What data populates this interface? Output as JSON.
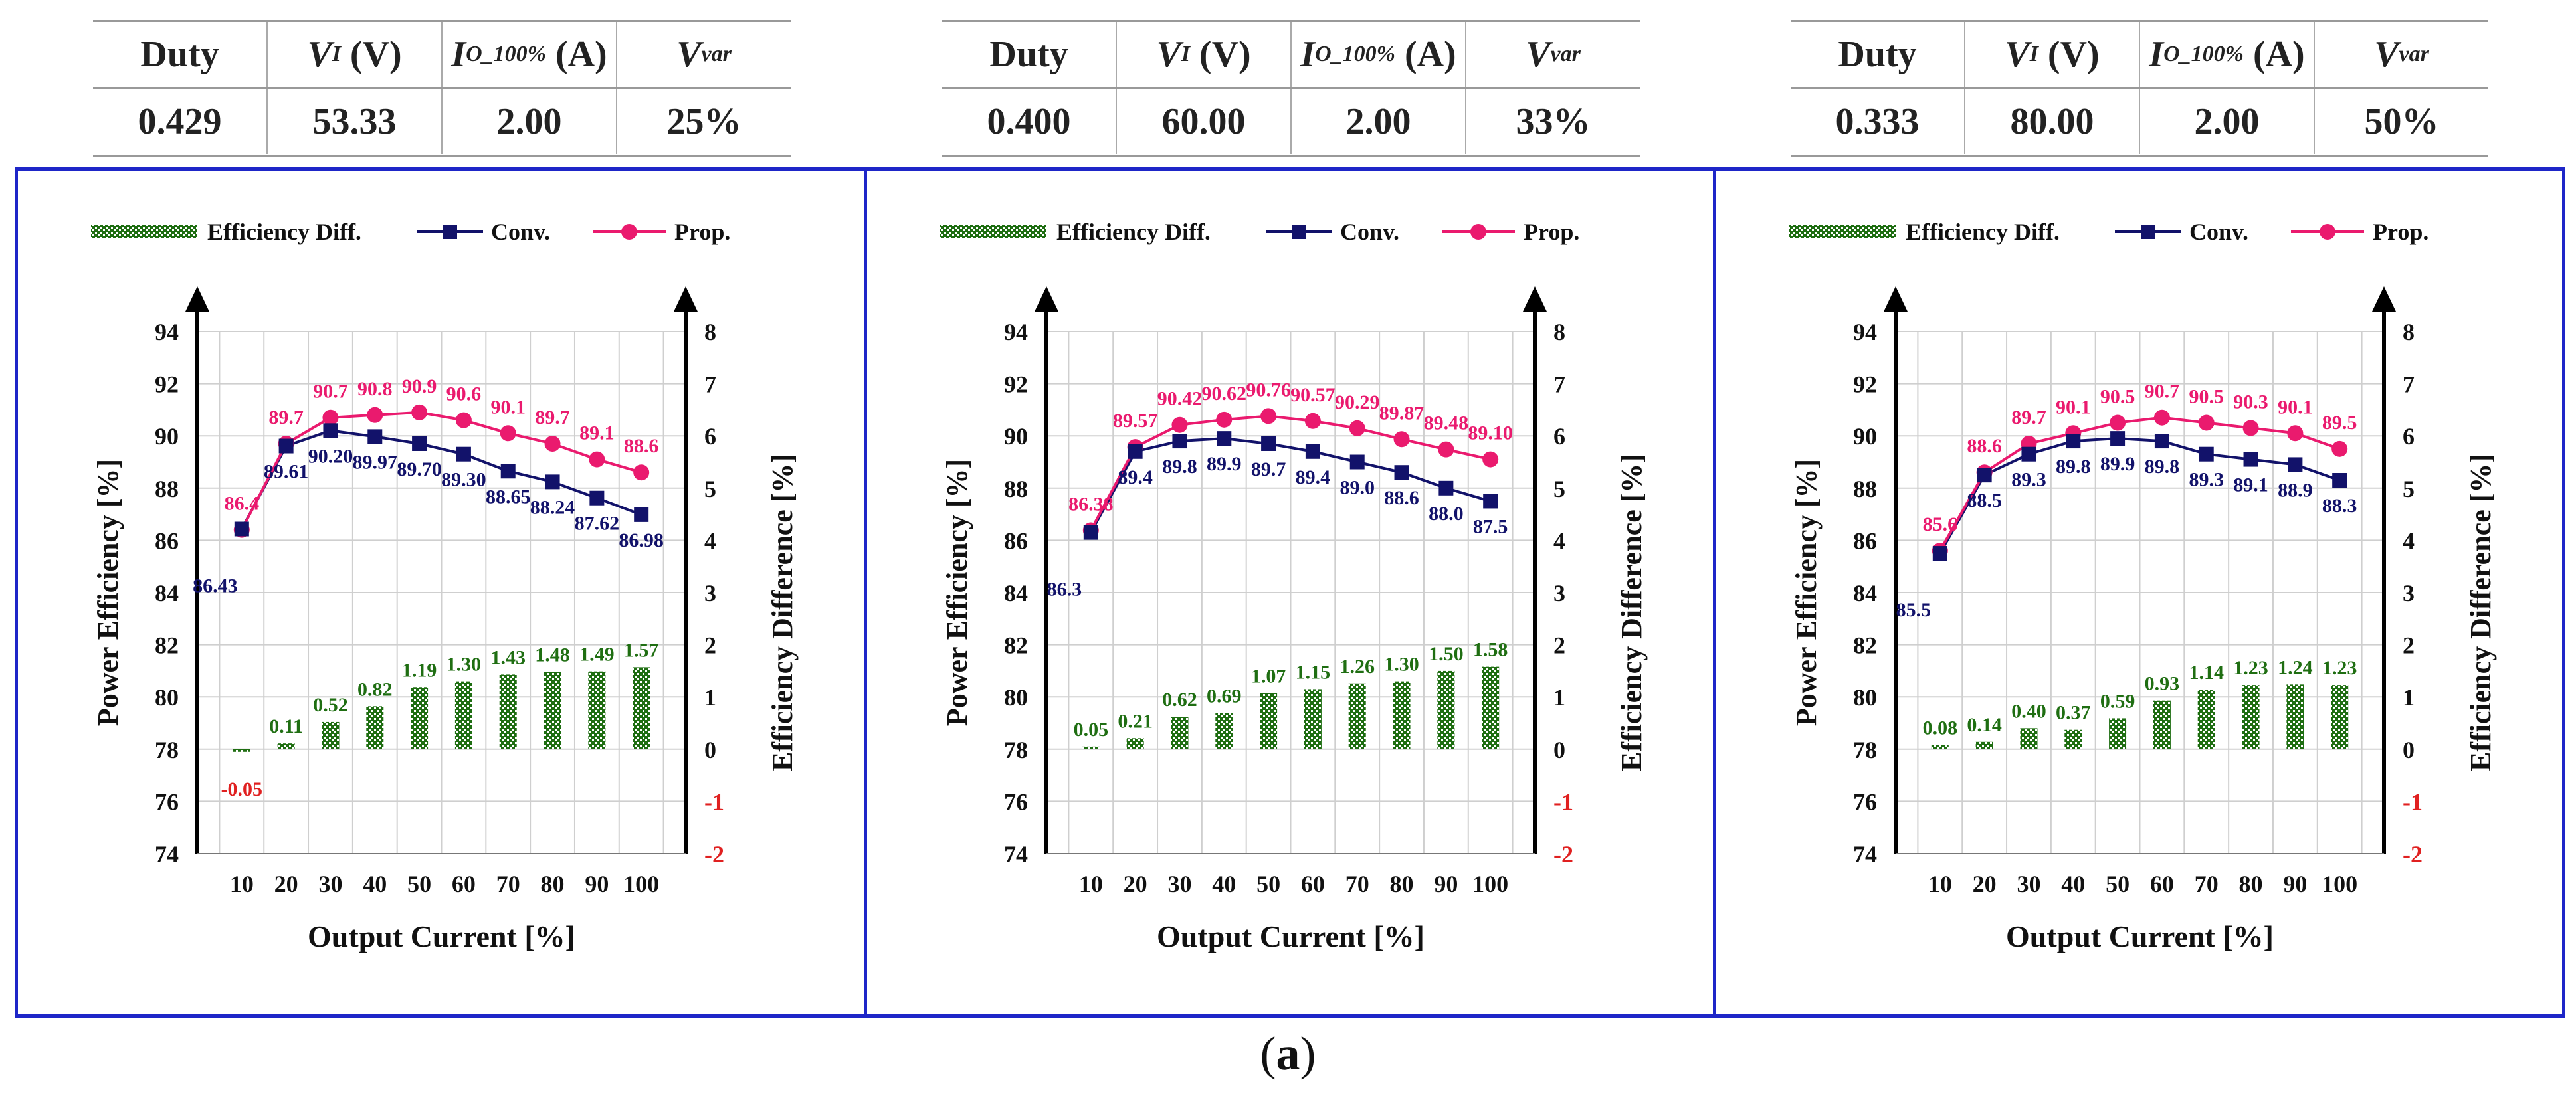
{
  "tables": [
    {
      "headers": {
        "duty": "Duty",
        "vi_sym": "V",
        "vi_sub": "I",
        "vi_unit": "(V)",
        "io_sym": "I",
        "io_sub": "O_100%",
        "io_unit": "(A)",
        "vvar_sym": "V",
        "vvar_sub": "var"
      },
      "values": [
        "0.429",
        "53.33",
        "2.00",
        "25%"
      ]
    },
    {
      "headers": {
        "duty": "Duty",
        "vi_sym": "V",
        "vi_sub": "I",
        "vi_unit": "(V)",
        "io_sym": "I",
        "io_sub": "O_100%",
        "io_unit": "(A)",
        "vvar_sym": "V",
        "vvar_sub": "var"
      },
      "values": [
        "0.400",
        "60.00",
        "2.00",
        "33%"
      ]
    },
    {
      "headers": {
        "duty": "Duty",
        "vi_sym": "V",
        "vi_sub": "I",
        "vi_unit": "(V)",
        "io_sym": "I",
        "io_sub": "O_100%",
        "io_unit": "(A)",
        "vvar_sym": "V",
        "vvar_sub": "var"
      },
      "values": [
        "0.333",
        "80.00",
        "2.00",
        "50%"
      ]
    }
  ],
  "caption": {
    "open": "(",
    "letter": "a",
    "close": ")"
  },
  "colors": {
    "frame": "#1e26c8",
    "conv": "#12126a",
    "prop": "#ea1a6e",
    "diff": "#1f6e12",
    "neg": "#e02020"
  },
  "chart_data": [
    {
      "type": "bar+line",
      "xlabel": "Output Current [%]",
      "ylabel": "Power Efficiency [%]",
      "y2label": "Efficiency Difference [%]",
      "legend": [
        "Efficiency Diff.",
        "Conv.",
        "Prop."
      ],
      "categories": [
        "10",
        "20",
        "30",
        "40",
        "50",
        "60",
        "70",
        "80",
        "90",
        "100"
      ],
      "ylim": [
        74,
        94
      ],
      "yticks": [
        "74",
        "76",
        "78",
        "80",
        "82",
        "84",
        "86",
        "88",
        "90",
        "92",
        "94"
      ],
      "y2lim": [
        -2,
        8
      ],
      "y2ticks": [
        "-2",
        "-1",
        "0",
        "1",
        "2",
        "3",
        "4",
        "5",
        "6",
        "7",
        "8"
      ],
      "conv_values": [
        86.43,
        89.61,
        90.2,
        89.97,
        89.7,
        89.3,
        88.65,
        88.24,
        87.62,
        86.98
      ],
      "conv_labels": [
        "86.43",
        "89.61",
        "90.20",
        "89.97",
        "89.70",
        "89.30",
        "88.65",
        "88.24",
        "87.62",
        "86.98"
      ],
      "prop_values": [
        86.4,
        89.7,
        90.7,
        90.8,
        90.9,
        90.6,
        90.1,
        89.7,
        89.1,
        88.6
      ],
      "prop_labels": [
        "86.4",
        "89.7",
        "90.7",
        "90.8",
        "90.9",
        "90.6",
        "90.1",
        "89.7",
        "89.1",
        "88.6"
      ],
      "diff_values": [
        -0.05,
        0.11,
        0.52,
        0.82,
        1.19,
        1.3,
        1.43,
        1.48,
        1.49,
        1.57
      ],
      "diff_labels": [
        "-0.05",
        "0.11",
        "0.52",
        "0.82",
        "1.19",
        "1.30",
        "1.43",
        "1.48",
        "1.49",
        "1.57"
      ]
    },
    {
      "type": "bar+line",
      "xlabel": "Output Current [%]",
      "ylabel": "Power Efficiency [%]",
      "y2label": "Efficiency Difference [%]",
      "legend": [
        "Efficiency Diff.",
        "Conv.",
        "Prop."
      ],
      "categories": [
        "10",
        "20",
        "30",
        "40",
        "50",
        "60",
        "70",
        "80",
        "90",
        "100"
      ],
      "ylim": [
        74,
        94
      ],
      "yticks": [
        "74",
        "76",
        "78",
        "80",
        "82",
        "84",
        "86",
        "88",
        "90",
        "92",
        "94"
      ],
      "y2lim": [
        -2,
        8
      ],
      "y2ticks": [
        "-2",
        "-1",
        "0",
        "1",
        "2",
        "3",
        "4",
        "5",
        "6",
        "7",
        "8"
      ],
      "conv_values": [
        86.3,
        89.4,
        89.8,
        89.9,
        89.7,
        89.4,
        89.0,
        88.6,
        88.0,
        87.5
      ],
      "conv_labels": [
        "86.3",
        "89.4",
        "89.8",
        "89.9",
        "89.7",
        "89.4",
        "89.0",
        "88.6",
        "88.0",
        "87.5"
      ],
      "prop_values": [
        86.38,
        89.57,
        90.42,
        90.62,
        90.76,
        90.57,
        90.29,
        89.87,
        89.48,
        89.1
      ],
      "prop_labels": [
        "86.38",
        "89.57",
        "90.42",
        "90.62",
        "90.76",
        "90.57",
        "90.29",
        "89.87",
        "89.48",
        "89.10"
      ],
      "diff_values": [
        0.05,
        0.21,
        0.62,
        0.69,
        1.07,
        1.15,
        1.26,
        1.3,
        1.5,
        1.58
      ],
      "diff_labels": [
        "0.05",
        "0.21",
        "0.62",
        "0.69",
        "1.07",
        "1.15",
        "1.26",
        "1.30",
        "1.50",
        "1.58"
      ]
    },
    {
      "type": "bar+line",
      "xlabel": "Output Current [%]",
      "ylabel": "Power Efficiency [%]",
      "y2label": "Efficiency Difference [%]",
      "legend": [
        "Efficiency Diff.",
        "Conv.",
        "Prop."
      ],
      "categories": [
        "10",
        "20",
        "30",
        "40",
        "50",
        "60",
        "70",
        "80",
        "90",
        "100"
      ],
      "ylim": [
        74,
        94
      ],
      "yticks": [
        "74",
        "76",
        "78",
        "80",
        "82",
        "84",
        "86",
        "88",
        "90",
        "92",
        "94"
      ],
      "y2lim": [
        -2,
        8
      ],
      "y2ticks": [
        "-2",
        "-1",
        "0",
        "1",
        "2",
        "3",
        "4",
        "5",
        "6",
        "7",
        "8"
      ],
      "conv_values": [
        85.5,
        88.5,
        89.3,
        89.8,
        89.9,
        89.8,
        89.3,
        89.1,
        88.9,
        88.3
      ],
      "conv_labels": [
        "85.5",
        "88.5",
        "89.3",
        "89.8",
        "89.9",
        "89.8",
        "89.3",
        "89.1",
        "88.9",
        "88.3"
      ],
      "prop_values": [
        85.6,
        88.6,
        89.7,
        90.1,
        90.5,
        90.7,
        90.5,
        90.3,
        90.1,
        89.5
      ],
      "prop_labels": [
        "85.6",
        "88.6",
        "89.7",
        "90.1",
        "90.5",
        "90.7",
        "90.5",
        "90.3",
        "90.1",
        "89.5"
      ],
      "diff_values": [
        0.08,
        0.14,
        0.4,
        0.37,
        0.59,
        0.93,
        1.14,
        1.23,
        1.24,
        1.23
      ],
      "diff_labels": [
        "0.08",
        "0.14",
        "0.40",
        "0.37",
        "0.59",
        "0.93",
        "1.14",
        "1.23",
        "1.24",
        "1.23"
      ]
    }
  ]
}
